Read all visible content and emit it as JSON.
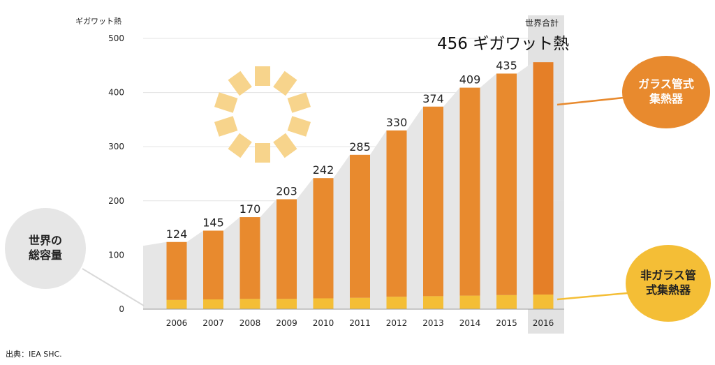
{
  "source": "出典：IEA SHC.",
  "unit_label": "ギガワット熱",
  "total_label": "世界合計",
  "total_value": "456 ギガワット熱",
  "bubbles": {
    "total_capacity": "世界の\n総容量",
    "glass_tube": "ガラス管式\n集熱器",
    "non_glass_tube": "非ガラス管\n式集熱器"
  },
  "colors": {
    "glass_tube": "#e88a2e",
    "non_glass_tube": "#f4be36",
    "total_area": "#e6e6e6",
    "sun": "#f7d48c"
  },
  "chart_data": {
    "type": "bar",
    "stacked": true,
    "categories": [
      "2006",
      "2007",
      "2008",
      "2009",
      "2010",
      "2011",
      "2012",
      "2013",
      "2014",
      "2015",
      "2016"
    ],
    "totals": [
      124,
      145,
      170,
      203,
      242,
      285,
      330,
      374,
      409,
      435,
      456
    ],
    "series": [
      {
        "name": "非ガラス管式集熱器",
        "values": [
          17,
          18,
          19,
          19,
          20,
          21,
          23,
          24,
          25,
          26,
          27
        ]
      },
      {
        "name": "ガラス管式集熱器",
        "values": [
          107,
          127,
          151,
          184,
          222,
          264,
          307,
          350,
          384,
          409,
          429
        ]
      }
    ],
    "ylim": [
      0,
      500
    ],
    "yticks": [
      0,
      100,
      200,
      300,
      400,
      500
    ],
    "grid": true,
    "highlight_category": "2016"
  }
}
